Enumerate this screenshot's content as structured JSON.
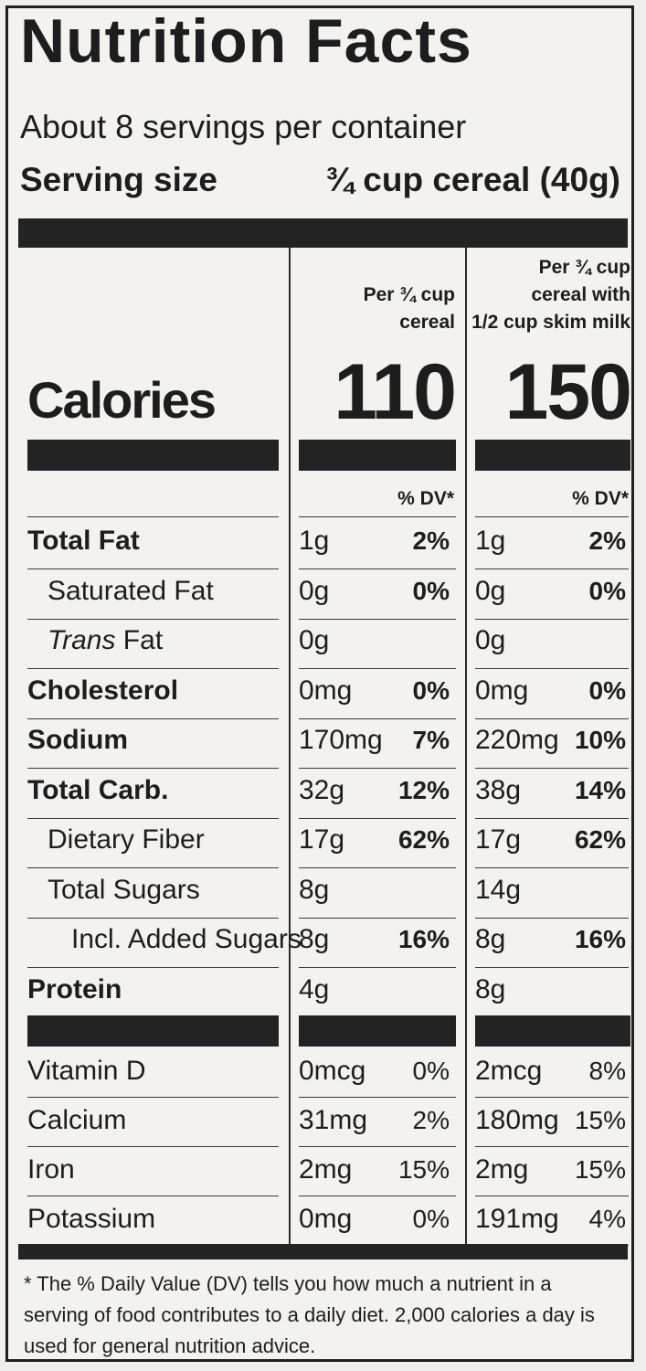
{
  "title": "Nutrition Facts",
  "servings_per_container": "About 8 servings per container",
  "serving_size_label": "Serving size",
  "serving_size_value": "¾ cup cereal (40g)",
  "columns": [
    {
      "header_lines": [
        "Per ¾ cup",
        "cereal"
      ],
      "calories": "110",
      "dv_header": "% DV*"
    },
    {
      "header_lines": [
        "Per ¾ cup",
        "cereal with",
        "1/2 cup skim milk"
      ],
      "calories": "150",
      "dv_header": "% DV*"
    }
  ],
  "calories_label": "Calories",
  "nutrients": [
    {
      "name": "Total Fat",
      "bold": true,
      "indent": 0,
      "c1": "1g",
      "p1": "2%",
      "c2": "1g",
      "p2": "2%"
    },
    {
      "name": "Saturated Fat",
      "bold": false,
      "indent": 1,
      "c1": "0g",
      "p1": "0%",
      "c2": "0g",
      "p2": "0%"
    },
    {
      "name": "Trans Fat",
      "bold": false,
      "indent": 1,
      "italic_part": "Trans",
      "c1": "0g",
      "p1": "",
      "c2": "0g",
      "p2": ""
    },
    {
      "name": "Cholesterol",
      "bold": true,
      "indent": 0,
      "c1": "0mg",
      "p1": "0%",
      "c2": "0mg",
      "p2": "0%"
    },
    {
      "name": "Sodium",
      "bold": true,
      "indent": 0,
      "c1": "170mg",
      "p1": "7%",
      "c2": "220mg",
      "p2": "10%"
    },
    {
      "name": "Total Carb.",
      "bold": true,
      "indent": 0,
      "c1": "32g",
      "p1": "12%",
      "c2": "38g",
      "p2": "14%"
    },
    {
      "name": "Dietary Fiber",
      "bold": false,
      "indent": 1,
      "c1": "17g",
      "p1": "62%",
      "c2": "17g",
      "p2": "62%"
    },
    {
      "name": "Total Sugars",
      "bold": false,
      "indent": 1,
      "c1": "8g",
      "p1": "",
      "c2": "14g",
      "p2": ""
    },
    {
      "name": "Incl. Added Sugars",
      "bold": false,
      "indent": 2,
      "c1": "8g",
      "p1": "16%",
      "c2": "8g",
      "p2": "16%"
    },
    {
      "name": "Protein",
      "bold": true,
      "indent": 0,
      "c1": "4g",
      "p1": "",
      "c2": "8g",
      "p2": ""
    }
  ],
  "vitamins": [
    {
      "name": "Vitamin D",
      "c1": "0mcg",
      "p1": "0%",
      "c2": "2mcg",
      "p2": "8%"
    },
    {
      "name": "Calcium",
      "c1": "31mg",
      "p1": "2%",
      "c2": "180mg",
      "p2": "15%"
    },
    {
      "name": "Iron",
      "c1": "2mg",
      "p1": "15%",
      "c2": "2mg",
      "p2": "15%"
    },
    {
      "name": "Potassium",
      "c1": "0mg",
      "p1": "0%",
      "c2": "191mg",
      "p2": "4%"
    }
  ],
  "footnote": "* The % Daily Value (DV) tells you how much a nutrient in a serving of food contributes to a daily diet. 2,000 calories a day is used for general nutrition advice."
}
